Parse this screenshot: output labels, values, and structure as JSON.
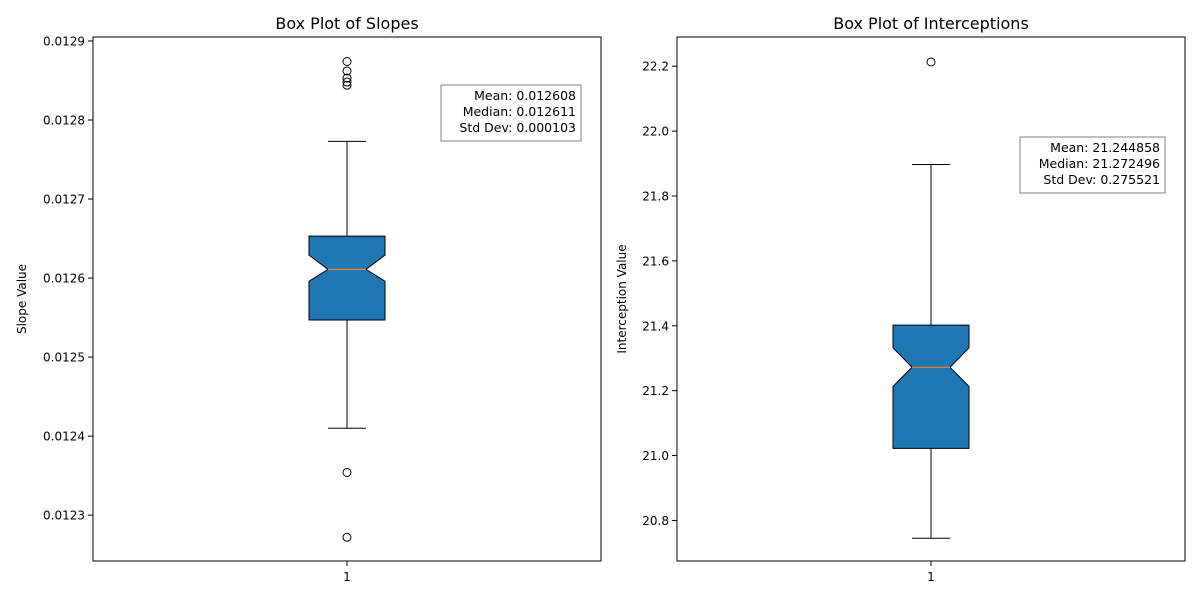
{
  "chart_data": [
    {
      "type": "box",
      "title": "Box Plot of Slopes",
      "ylabel": "Slope Value",
      "xlabel": "",
      "categories": [
        "1"
      ],
      "ylim": [
        0.012242,
        0.012905
      ],
      "yticks": [
        0.0123,
        0.0124,
        0.0125,
        0.0126,
        0.0127,
        0.0128,
        0.0129
      ],
      "ytick_labels": [
        "0.0123",
        "0.0124",
        "0.0125",
        "0.0126",
        "0.0127",
        "0.0128",
        "0.0129"
      ],
      "notched": true,
      "box_color": "#1f77b4",
      "median_color": "#ff7f0e",
      "box": {
        "whisker_low": 0.01241,
        "q1": 0.012547,
        "notch_low": 0.012596,
        "median": 0.012611,
        "notch_high": 0.012629,
        "q3": 0.012653,
        "whisker_high": 0.012773
      },
      "outliers": [
        0.012272,
        0.012354,
        0.012844,
        0.012848,
        0.012853,
        0.012862,
        0.012874
      ],
      "stats_lines": [
        "Mean: 0.012608",
        "Median: 0.012611",
        "Std Dev: 0.000103"
      ],
      "stats_placement": "top-right"
    },
    {
      "type": "box",
      "title": "Box Plot of Interceptions",
      "ylabel": "Interception Value",
      "xlabel": "",
      "categories": [
        "1"
      ],
      "ylim": [
        20.675,
        22.29
      ],
      "yticks": [
        20.8,
        21.0,
        21.2,
        21.4,
        21.6,
        21.8,
        22.0,
        22.2
      ],
      "ytick_labels": [
        "20.8",
        "21.0",
        "21.2",
        "21.4",
        "21.6",
        "21.8",
        "22.0",
        "22.2"
      ],
      "notched": true,
      "box_color": "#1f77b4",
      "median_color": "#ff7f0e",
      "box": {
        "whisker_low": 20.745,
        "q1": 21.022,
        "notch_low": 21.213,
        "median": 21.272,
        "notch_high": 21.332,
        "q3": 21.402,
        "whisker_high": 21.897
      },
      "outliers": [
        22.213
      ],
      "stats_lines": [
        "Mean: 21.244858",
        "Median: 21.272496",
        "Std Dev: 0.275521"
      ],
      "stats_placement": "top-right"
    }
  ]
}
